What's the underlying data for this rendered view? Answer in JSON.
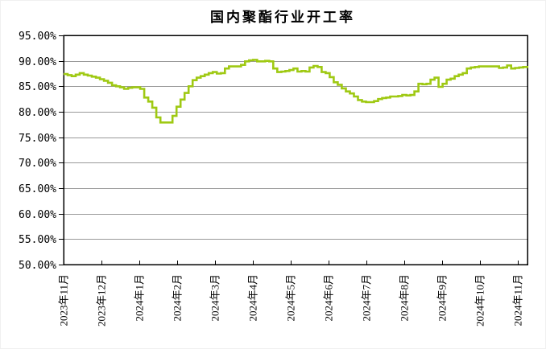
{
  "colors": {
    "line": "#9FC913",
    "gridline": "#999999",
    "axis": "#000000",
    "text": "#000000",
    "background": "#FFFFFF"
  },
  "chart_data": {
    "type": "line",
    "title": "国内聚酯行业开工率",
    "legend": "none",
    "grid": true,
    "y_axis": {
      "min": 50,
      "max": 95,
      "step": 5,
      "unit": "%",
      "tick_labels": [
        "95.00%",
        "90.00%",
        "85.00%",
        "80.00%",
        "75.00%",
        "70.00%",
        "65.00%",
        "60.00%",
        "55.00%",
        "50.00%"
      ]
    },
    "x_axis": {
      "categories": [
        "2023年11月",
        "2023年12月",
        "2024年1月",
        "2024年2月",
        "2024年3月",
        "2024年4月",
        "2024年5月",
        "2024年6月",
        "2024年7月",
        "2024年8月",
        "2024年9月",
        "2024年10月",
        "2024年11月"
      ]
    },
    "series": [
      {
        "name": "国内聚酯行业开工率",
        "x_start_month_index": 0,
        "x_end_month_index": 12.25,
        "values": [
          87.4,
          87.2,
          87.0,
          87.3,
          87.6,
          87.3,
          87.1,
          86.9,
          86.7,
          86.4,
          86.1,
          85.7,
          85.2,
          85.0,
          84.8,
          84.5,
          84.7,
          84.8,
          84.8,
          84.5,
          82.8,
          82.0,
          80.8,
          78.9,
          77.9,
          77.9,
          77.9,
          79.2,
          81.0,
          82.4,
          83.7,
          85.0,
          86.2,
          86.7,
          87.0,
          87.3,
          87.6,
          87.8,
          87.5,
          87.6,
          88.5,
          88.9,
          88.9,
          88.9,
          89.2,
          89.9,
          90.1,
          90.2,
          89.9,
          89.9,
          90.0,
          89.9,
          88.5,
          87.8,
          87.9,
          88.0,
          88.2,
          88.5,
          87.9,
          88.0,
          87.9,
          88.7,
          89.0,
          88.8,
          87.8,
          87.6,
          86.8,
          85.8,
          85.3,
          84.6,
          84.0,
          83.6,
          83.0,
          82.3,
          82.0,
          81.9,
          81.9,
          82.1,
          82.5,
          82.7,
          82.8,
          83.0,
          83.0,
          83.1,
          83.3,
          83.2,
          83.3,
          84.0,
          85.5,
          85.4,
          85.5,
          86.3,
          86.7,
          84.9,
          85.5,
          86.3,
          86.5,
          87.0,
          87.3,
          87.6,
          88.5,
          88.7,
          88.8,
          88.9,
          88.9,
          88.9,
          88.9,
          88.9,
          88.6,
          88.7,
          89.1,
          88.5,
          88.6,
          88.7,
          88.8,
          89.0
        ]
      }
    ]
  }
}
